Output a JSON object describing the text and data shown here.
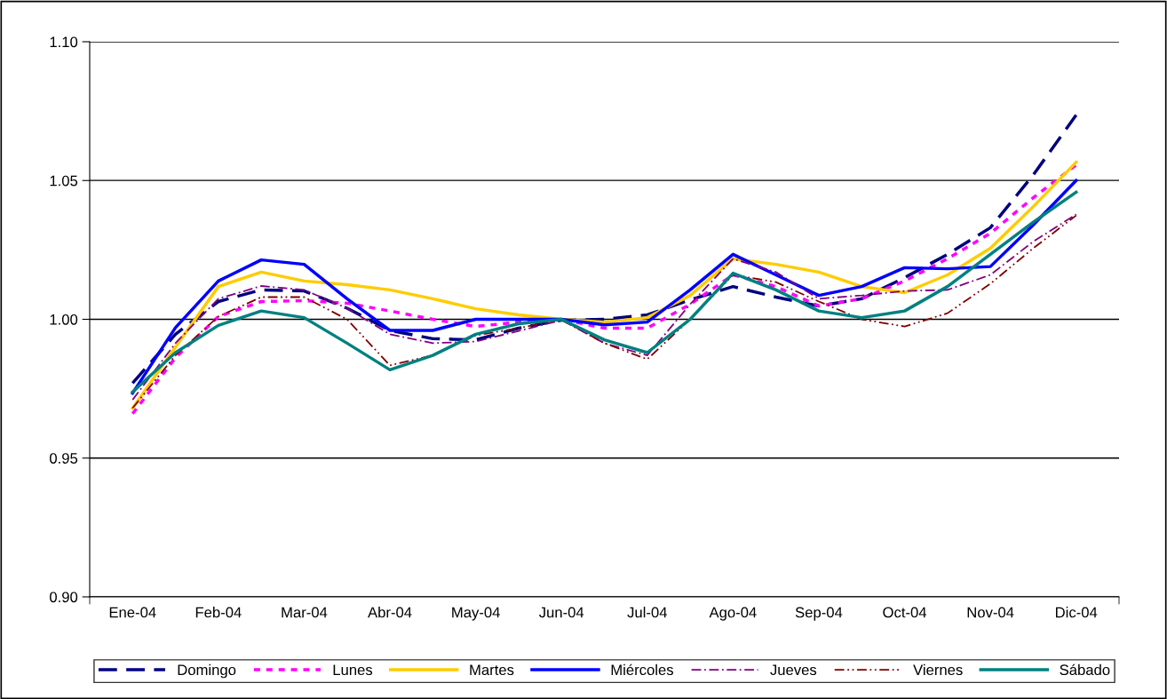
{
  "chart_data": {
    "type": "line",
    "categories": [
      "Ene-04",
      null,
      "Feb-04",
      null,
      "Mar-04",
      null,
      "Abr-04",
      null,
      "May-04",
      null,
      "Jun-04",
      null,
      "Jul-04",
      null,
      "Ago-04",
      null,
      "Sep-04",
      null,
      "Oct-04",
      null,
      "Nov-04",
      null,
      "Dic-04"
    ],
    "ylim": [
      0.9,
      1.1
    ],
    "yticks": [
      {
        "value": 0.9,
        "label": "0.90"
      },
      {
        "value": 0.95,
        "label": "0.95"
      },
      {
        "value": 1.0,
        "label": "1.00"
      },
      {
        "value": 1.05,
        "label": "1.05"
      },
      {
        "value": 1.1,
        "label": "1.10"
      }
    ],
    "grid": "y",
    "legend": "bottom",
    "marker": "none",
    "series": [
      {
        "name": "Domingo",
        "color": "#000080",
        "line_style": "dashed",
        "values": [
          0.977,
          0.9946,
          1.0064,
          1.0106,
          1.0102,
          1.004,
          0.996,
          0.993,
          0.9926,
          0.9968,
          0.9997,
          1.0,
          1.0016,
          1.007,
          1.0118,
          1.008,
          1.0048,
          1.0074,
          1.015,
          1.0234,
          1.033,
          1.052,
          1.0736
        ]
      },
      {
        "name": "Lunes",
        "color": "#ff00ff",
        "line_style": "dotted",
        "values": [
          0.966,
          0.9862,
          1.001,
          1.0064,
          1.0067,
          1.0058,
          1.003,
          1.0,
          0.9974,
          0.999,
          1.0,
          0.9968,
          0.9968,
          1.0054,
          1.016,
          1.0118,
          1.0048,
          1.0074,
          1.0138,
          1.0218,
          1.031,
          1.0438,
          1.0556
        ]
      },
      {
        "name": "Martes",
        "color": "#ffcc00",
        "line_style": "solid",
        "values": [
          0.968,
          0.99,
          1.0118,
          1.017,
          1.0138,
          1.0125,
          1.0106,
          1.0074,
          1.0038,
          1.0016,
          1.0,
          0.999,
          1.0006,
          1.0086,
          1.0218,
          1.0198,
          1.017,
          1.0118,
          1.0096,
          1.016,
          1.0256,
          1.0406,
          1.0566
        ]
      },
      {
        "name": "Miércoles",
        "color": "#0000ff",
        "line_style": "solid",
        "values": [
          0.9734,
          0.997,
          1.0138,
          1.0214,
          1.0198,
          1.0074,
          0.996,
          0.996,
          1.0,
          1.0,
          1.0,
          0.998,
          0.999,
          1.0106,
          1.0234,
          1.016,
          1.0086,
          1.0118,
          1.0186,
          1.0182,
          1.019,
          1.034,
          1.05
        ]
      },
      {
        "name": "Jueves",
        "color": "#800080",
        "line_style": "dashdot",
        "values": [
          0.971,
          0.9914,
          1.0074,
          1.012,
          1.0106,
          1.004,
          0.9946,
          0.9914,
          0.992,
          0.9958,
          0.9997,
          0.9914,
          0.987,
          1.0054,
          1.0218,
          1.017,
          1.0074,
          1.0086,
          1.0102,
          1.0106,
          1.016,
          1.028,
          1.0378
        ]
      },
      {
        "name": "Viernes",
        "color": "#800000",
        "line_style": "dashdotdot",
        "values": [
          0.968,
          0.987,
          1.001,
          1.008,
          1.008,
          1.0,
          0.9834,
          0.987,
          0.9942,
          0.9968,
          1.0,
          0.9914,
          0.9856,
          1.0,
          1.016,
          1.0134,
          1.0064,
          1.0,
          0.9974,
          1.0022,
          1.0128,
          1.0256,
          1.0374
        ]
      },
      {
        "name": "Sábado",
        "color": "#008080",
        "line_style": "solid",
        "values": [
          0.9738,
          0.988,
          0.9978,
          1.003,
          1.0006,
          0.9914,
          0.9818,
          0.987,
          0.9946,
          0.9984,
          1.0,
          0.9926,
          0.988,
          1.0,
          1.0166,
          1.0106,
          1.003,
          1.0006,
          1.003,
          1.0118,
          1.0234,
          1.035,
          1.0458
        ]
      }
    ]
  }
}
